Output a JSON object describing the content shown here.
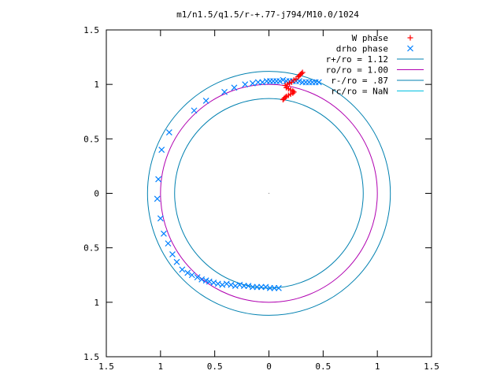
{
  "chart_data": {
    "type": "scatter",
    "title": "m1/n1.5/q1.5/r-+.77-j794/M10.0/1024",
    "xlabel": "",
    "ylabel": "",
    "xlim": [
      -1.5,
      1.5
    ],
    "ylim": [
      -1.5,
      1.5
    ],
    "x_ticks": [
      -1.5,
      -1,
      -0.5,
      0,
      0.5,
      1,
      1.5
    ],
    "y_ticks": [
      -1.5,
      -1,
      -0.5,
      0,
      0.5,
      1,
      1.5
    ],
    "x_tick_labels": [
      "1.5",
      "1",
      "0.5",
      "0",
      "0.5",
      "1",
      "1.5"
    ],
    "y_tick_labels": [
      "1.5",
      "1",
      "0.5",
      "0",
      "0.5",
      "1",
      "1.5"
    ],
    "grid": false,
    "legend_position": "top-right",
    "series": [
      {
        "name": "W phase",
        "kind": "points",
        "marker": "plus",
        "color": "#ff0000",
        "points": [
          [
            0.13,
            0.86
          ],
          [
            0.14,
            0.87
          ],
          [
            0.15,
            0.88
          ],
          [
            0.16,
            0.89
          ],
          [
            0.18,
            0.9
          ],
          [
            0.2,
            0.91
          ],
          [
            0.22,
            0.92
          ],
          [
            0.23,
            0.93
          ],
          [
            0.22,
            0.94
          ],
          [
            0.2,
            0.95
          ],
          [
            0.18,
            0.96
          ],
          [
            0.16,
            0.97
          ],
          [
            0.15,
            0.99
          ],
          [
            0.17,
            1.0
          ],
          [
            0.19,
            1.01
          ],
          [
            0.21,
            1.02
          ],
          [
            0.23,
            1.04
          ],
          [
            0.25,
            1.05
          ],
          [
            0.27,
            1.07
          ],
          [
            0.28,
            1.08
          ],
          [
            0.29,
            1.09
          ],
          [
            0.3,
            1.1
          ],
          [
            0.31,
            1.11
          ]
        ]
      },
      {
        "name": "drho phase",
        "kind": "points",
        "marker": "cross",
        "color": "#0080ff",
        "points": [
          [
            -1.02,
            0.13
          ],
          [
            -1.03,
            -0.05
          ],
          [
            -1.0,
            -0.23
          ],
          [
            -0.97,
            -0.37
          ],
          [
            -0.93,
            -0.46
          ],
          [
            -0.89,
            -0.56
          ],
          [
            -0.85,
            -0.63
          ],
          [
            -0.8,
            -0.7
          ],
          [
            -0.75,
            -0.73
          ],
          [
            -0.71,
            -0.75
          ],
          [
            -0.66,
            -0.77
          ],
          [
            -0.62,
            -0.79
          ],
          [
            -0.58,
            -0.8
          ],
          [
            -0.55,
            -0.81
          ],
          [
            -0.51,
            -0.82
          ],
          [
            -0.47,
            -0.83
          ],
          [
            -0.43,
            -0.84
          ],
          [
            -0.39,
            -0.83
          ],
          [
            -0.35,
            -0.84
          ],
          [
            -0.31,
            -0.85
          ],
          [
            -0.27,
            -0.84
          ],
          [
            -0.23,
            -0.85
          ],
          [
            -0.19,
            -0.85
          ],
          [
            -0.15,
            -0.86
          ],
          [
            -0.11,
            -0.86
          ],
          [
            -0.07,
            -0.86
          ],
          [
            -0.03,
            -0.86
          ],
          [
            0.01,
            -0.87
          ],
          [
            0.05,
            -0.87
          ],
          [
            0.09,
            -0.87
          ],
          [
            -0.99,
            0.4
          ],
          [
            -0.92,
            0.56
          ],
          [
            -0.69,
            0.76
          ],
          [
            -0.58,
            0.85
          ],
          [
            -0.41,
            0.93
          ],
          [
            -0.32,
            0.97
          ],
          [
            -0.22,
            1.0
          ],
          [
            -0.15,
            1.01
          ],
          [
            -0.1,
            1.02
          ],
          [
            -0.06,
            1.02
          ],
          [
            -0.02,
            1.03
          ],
          [
            0.01,
            1.03
          ],
          [
            0.04,
            1.03
          ],
          [
            0.07,
            1.03
          ],
          [
            0.1,
            1.03
          ],
          [
            0.13,
            1.04
          ],
          [
            0.16,
            1.03
          ],
          [
            0.19,
            1.03
          ],
          [
            0.22,
            1.03
          ],
          [
            0.25,
            1.03
          ],
          [
            0.28,
            1.03
          ],
          [
            0.31,
            1.02
          ],
          [
            0.34,
            1.02
          ],
          [
            0.37,
            1.02
          ],
          [
            0.4,
            1.02
          ],
          [
            0.43,
            1.02
          ],
          [
            0.46,
            1.02
          ]
        ]
      },
      {
        "name": "r+/ro = 1.12",
        "kind": "circle",
        "r": 1.12,
        "color": "#0080b0"
      },
      {
        "name": "ro/ro = 1.00",
        "kind": "circle",
        "r": 1.0,
        "color": "#b000b0"
      },
      {
        "name": "r-/ro = .87",
        "kind": "circle",
        "r": 0.87,
        "color": "#0080b0"
      },
      {
        "name": "rc/ro = NaN",
        "kind": "circle",
        "r": null,
        "color": "#00c0e0"
      }
    ]
  }
}
